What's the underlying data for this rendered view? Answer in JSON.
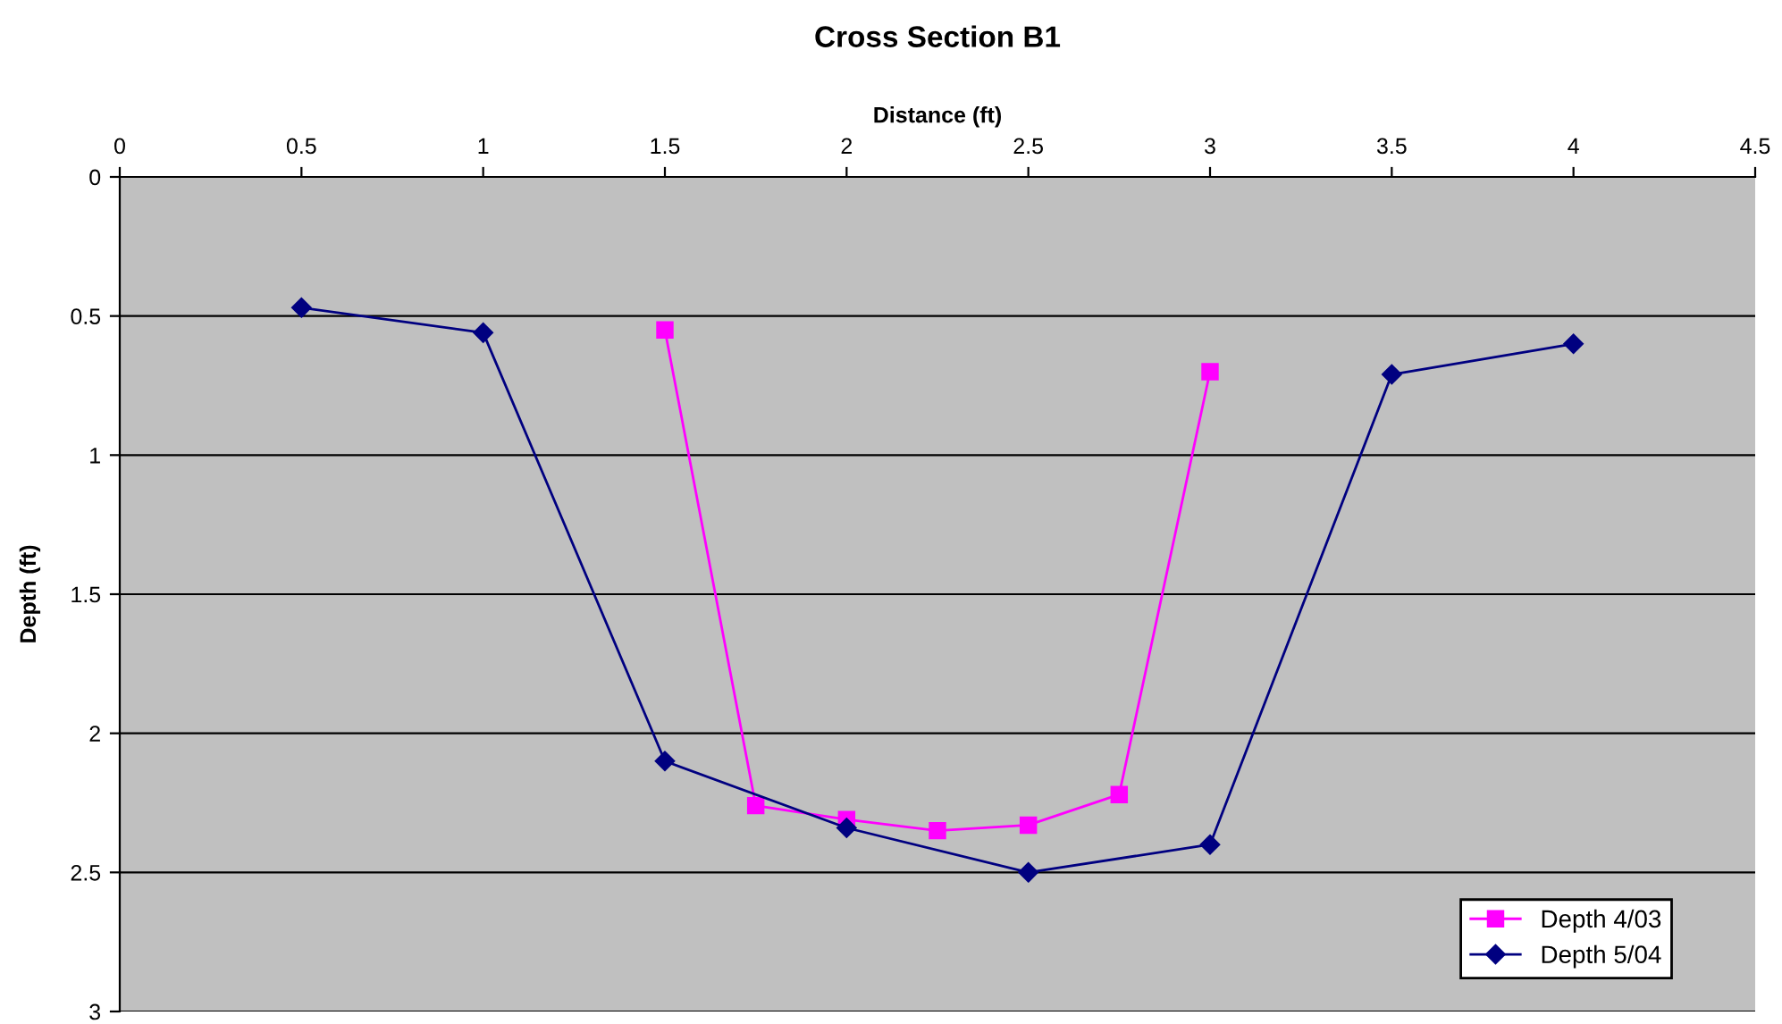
{
  "chart_data": {
    "type": "line",
    "title": "Cross Section B1",
    "xlabel": "Distance (ft)",
    "ylabel": "Depth (ft)",
    "xlim": [
      0,
      4.5
    ],
    "xticks": [
      0,
      0.5,
      1,
      1.5,
      2,
      2.5,
      3,
      3.5,
      4,
      4.5
    ],
    "ylim": [
      3,
      0
    ],
    "yticks": [
      0,
      0.5,
      1,
      1.5,
      2,
      2.5,
      3
    ],
    "grid": "y",
    "legend": "bottom right",
    "series": [
      {
        "name": "Depth 4/03",
        "color": "#ff00ff",
        "marker": "square",
        "x": [
          1.5,
          1.75,
          2,
          2.25,
          2.5,
          2.75,
          3
        ],
        "values": [
          0.55,
          2.26,
          2.31,
          2.35,
          2.33,
          2.22,
          0.7
        ]
      },
      {
        "name": "Depth 5/04",
        "color": "#000080",
        "marker": "diamond",
        "x": [
          0.5,
          1,
          1.5,
          2,
          2.5,
          3,
          3.5,
          4
        ],
        "values": [
          0.47,
          0.56,
          2.1,
          2.34,
          2.5,
          2.4,
          0.71,
          0.6
        ]
      }
    ]
  }
}
